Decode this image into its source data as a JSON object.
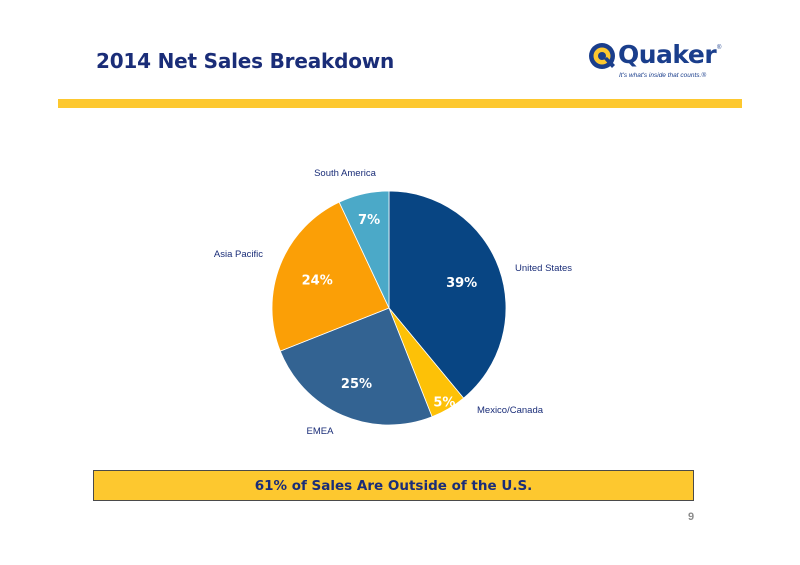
{
  "slide": {
    "title": "2014 Net Sales Breakdown",
    "callout": "61% of Sales Are Outside of the U.S.",
    "page_number": "9"
  },
  "logo": {
    "wordmark": "Quaker",
    "registered": "®",
    "tagline": "It's what's inside that counts.®"
  },
  "colors": {
    "title": "#1a2d78",
    "accent_rule": "#fdc82f",
    "callout_bg": "#fdc82f"
  },
  "chart_data": {
    "type": "pie",
    "title": "",
    "slices": [
      {
        "label": "United States",
        "value": 39,
        "display": "39%",
        "color": "#084583"
      },
      {
        "label": "Mexico/Canada",
        "value": 5,
        "display": "5%",
        "color": "#fdc107"
      },
      {
        "label": "EMEA",
        "value": 25,
        "display": "25%",
        "color": "#336392"
      },
      {
        "label": "Asia Pacific",
        "value": 24,
        "display": "24%",
        "color": "#fb9f06"
      },
      {
        "label": "South America",
        "value": 7,
        "display": "7%",
        "color": "#4ba9c8"
      }
    ],
    "legend": "none",
    "start": "top, clockwise"
  }
}
